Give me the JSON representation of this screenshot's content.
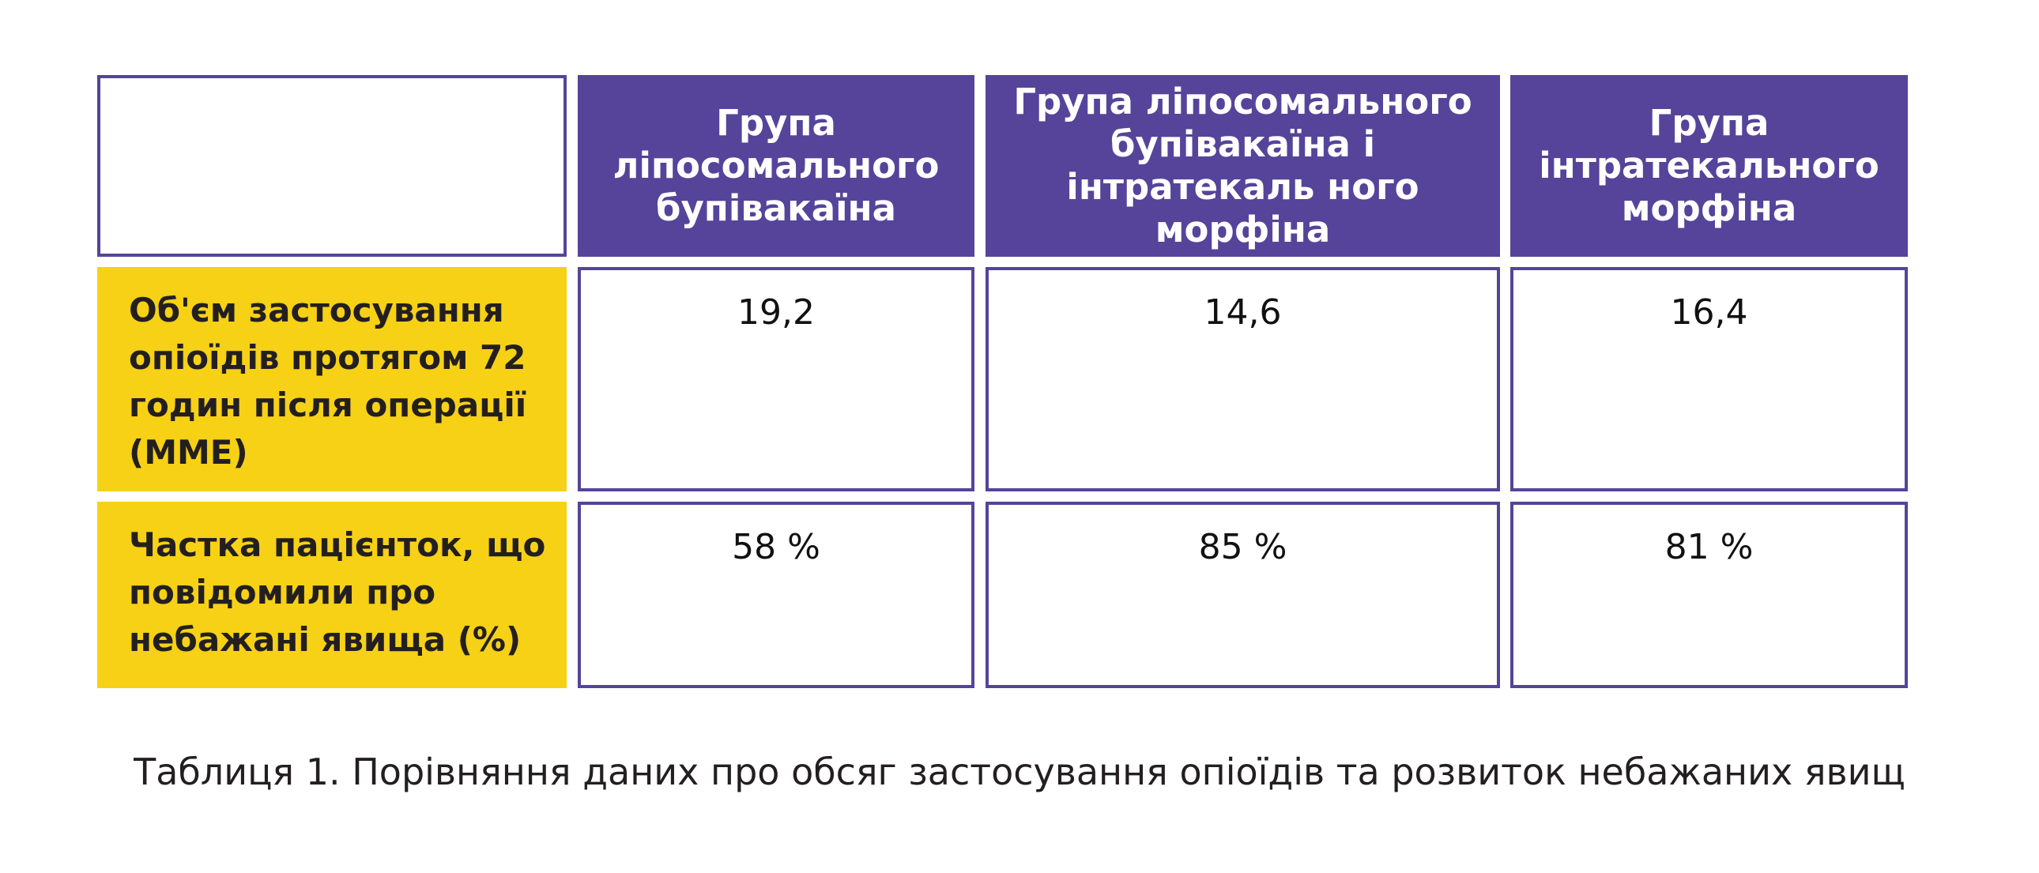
{
  "table": {
    "columns": [
      "Група ліпосомального бупівакаїна",
      "Група ліпосомального бупівакаїна і інтратекаль ного морфіна",
      "Група інтратекального морфіна"
    ],
    "rows": [
      {
        "label": "Об'єм застосування опіоїдів протягом 72 годин після операції (MME)",
        "values": [
          "19,2",
          "14,6",
          "16,4"
        ]
      },
      {
        "label": "Частка пацієнток, що повідомили про небажані явища (%)",
        "values": [
          "58 %",
          "85 %",
          "81 %"
        ]
      }
    ]
  },
  "caption": "Таблиця 1. Порівняння даних про обсяг застосування опіоїдів та розвиток небажаних явищ",
  "colors": {
    "header_purple": "#55449A",
    "row_yellow": "#F6D115"
  }
}
